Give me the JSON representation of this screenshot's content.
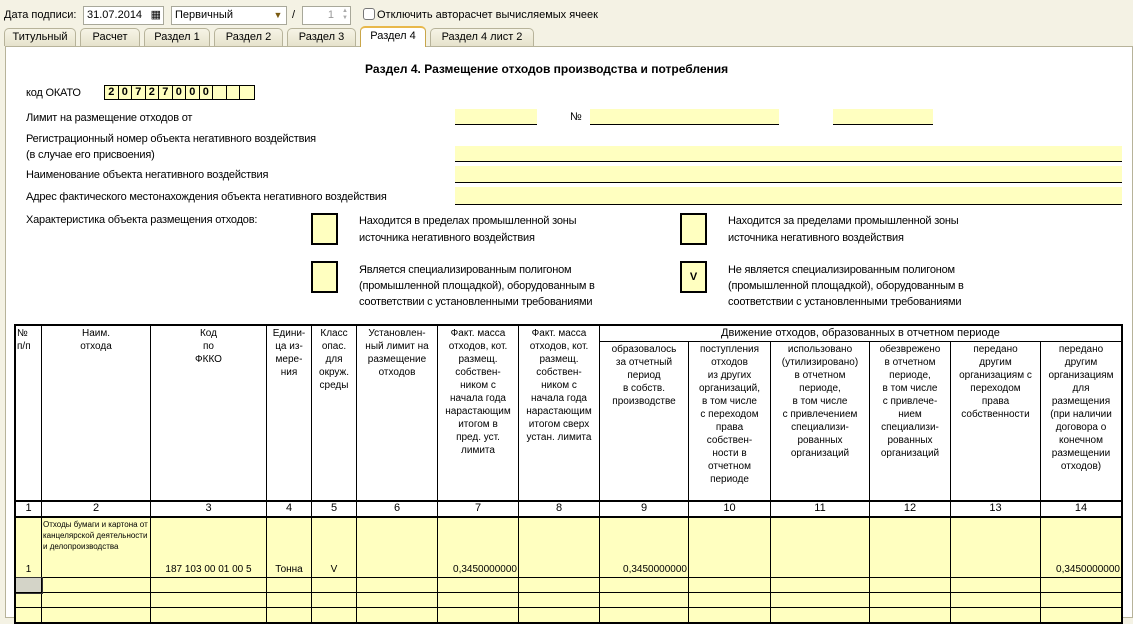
{
  "toolbar": {
    "sign_date_label": "Дата подписи:",
    "sign_date": "31.07.2014",
    "report_type": "Первичный",
    "separator": "/",
    "correction_number": "1",
    "disable_autocalc_label": "Отключить авторасчет вычисляемых ячеек",
    "disable_autocalc_checked": false
  },
  "tabs": [
    {
      "label": "Титульный"
    },
    {
      "label": "Расчет"
    },
    {
      "label": "Раздел 1"
    },
    {
      "label": "Раздел 2"
    },
    {
      "label": "Раздел 3"
    },
    {
      "label": "Раздел 4",
      "active": true
    },
    {
      "label": "Раздел 4 лист 2"
    }
  ],
  "form": {
    "title": "Раздел 4. Размещение отходов производства и потребления",
    "okato_label": "код ОКАТО",
    "okato_digits": [
      "2",
      "0",
      "7",
      "2",
      "7",
      "0",
      "0",
      "0",
      "",
      "",
      ""
    ],
    "limit_label": "Лимит на размещение отходов от",
    "number_sign": "№",
    "reg_number_label_1": "Регистрационный номер объекта негативного воздействия",
    "reg_number_label_2": "(в случае его присвоения)",
    "object_name_label": "Наименование объекта негативного воздействия",
    "object_address_label": "Адрес фактического местонахождения объекта негативного воздействия",
    "characteristic_label": "Характеристика объекта размещения отходов:",
    "options": [
      {
        "line1": "Находится в пределах промышленной зоны",
        "line2": "источника негативного воздействия",
        "line3": "",
        "mark": ""
      },
      {
        "line1": "Находится за пределами промышленной зоны",
        "line2": "источника негативного воздействия",
        "line3": "",
        "mark": ""
      },
      {
        "line1": "Является специализированным полигоном",
        "line2": "(промышленной площадкой), оборудованным в",
        "line3": "соответствии с установленными требованиями",
        "mark": ""
      },
      {
        "line1": "Не является специализированным полигоном",
        "line2": "(промышленной площадкой), оборудованным в",
        "line3": "соответствии с установленными требованиями",
        "mark": "V"
      }
    ]
  },
  "table": {
    "group_header": "Движение отходов, образованных в отчетном периоде",
    "headers": [
      "№\nп/п",
      "Наим.\nотхода",
      "Код\nпо\nФККО",
      "Едини-\nца из-\nмере-\nния",
      "Класс\nопас.\nдля\nокруж.\nсреды",
      "Установлен-\nный лимит на\nразмещение\nотходов",
      "Факт. масса\nотходов, кот.\nразмещ.\nсобствен-\nником с\nначала года\nнарастающим\nитогом в\nпред. уст.\nлимита",
      "Факт. масса\nотходов, кот.\nразмещ.\nсобствен-\nником с\nначала года\nнарастающим\nитогом сверх\nустан. лимита",
      "образовалось\nза отчетный\nпериод\nв собств.\nпроизводстве",
      "поступления\nотходов\nиз других\nорганизаций,\nв том числе\nс переходом\nправа\nсобствен-\nности в\nотчетном\nпериоде",
      "использовано\n(утилизировано)\nв отчетном\nпериоде,\nв том числе\nс привлечением\nспециализи-\nрованных\nорганизаций",
      "обезврежено\nв отчетном\nпериоде,\nв том числе\nс привлече-\nнием\nспециализи-\nрованных\nорганизаций",
      "передано\nдругим\nорганизациям с\nпереходом\nправа\nсобственности",
      "передано\nдругим\nорганизациям\nдля\nразмещения\n(при наличии\nдоговора о\nконечном\nразмещении\nотходов)"
    ],
    "column_numbers": [
      "1",
      "2",
      "3",
      "4",
      "5",
      "6",
      "7",
      "8",
      "9",
      "10",
      "11",
      "12",
      "13",
      "14"
    ],
    "rows": [
      [
        "1",
        "Отходы бумаги и картона от канцелярской деятельности и делопроизводства",
        "187 103 00 01 00 5",
        "Тонна",
        "V",
        "",
        "0,3450000000",
        "",
        "0,3450000000",
        "",
        "",
        "",
        "",
        "0,3450000000"
      ]
    ],
    "empty_rows": 3
  },
  "colors": {
    "field_yellow": "#ffffc0",
    "active_tab_accent": "#e8b84a"
  }
}
